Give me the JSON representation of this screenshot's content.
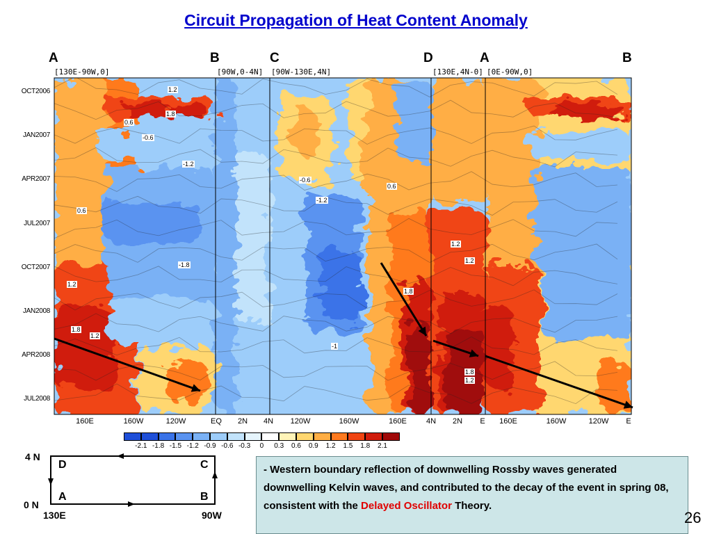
{
  "title": "Circuit Propagation of Heat Content Anomaly",
  "segment_letters": [
    "A",
    "B",
    "C",
    "D",
    "A",
    "B"
  ],
  "panel_headers": [
    "[130E-90W,0]",
    "[90W,0-4N]",
    "[90W-130E,4N]",
    "[130E,4N-0]",
    "[0E-90W,0]"
  ],
  "y_labels": [
    "OCT2006",
    "JAN2007",
    "APR2007",
    "JUL2007",
    "OCT2007",
    "JAN2008",
    "APR2008",
    "JUL2008"
  ],
  "x_labels": [
    "160E",
    "160W",
    "120W",
    "EQ",
    "2N",
    "4N",
    "120W",
    "160W",
    "160E",
    "4N",
    "2N",
    "E",
    "160E",
    "160W",
    "120W",
    "E"
  ],
  "colorbar": {
    "labels": [
      "-2.1",
      "-1.8",
      "-1.5",
      "-1.2",
      "-0.9",
      "-0.6",
      "-0.3",
      "0",
      "0.3",
      "0.6",
      "0.9",
      "1.2",
      "1.5",
      "1.8",
      "2.1"
    ],
    "colors": [
      "#1f4fd8",
      "#3a73e8",
      "#5a93f0",
      "#7ab1f5",
      "#9dcdfa",
      "#c2e3fb",
      "#e6f5fd",
      "#ffffff",
      "#fff4b8",
      "#ffd770",
      "#ffae44",
      "#ff7a1f",
      "#f04412",
      "#d01c0c",
      "#a00808"
    ]
  },
  "contour_labels": [
    "1.2",
    "0.6",
    "1.8",
    "-0.6",
    "-1.2",
    "-1.8",
    "0.6",
    "1.2",
    "-0.6",
    "-1.2",
    "1.2",
    "0.6",
    "1.8",
    "1.2",
    "1.8",
    "1.2",
    "1.8",
    "1.2",
    "-1"
  ],
  "diagram": {
    "lat_top": "4 N",
    "lat_bottom": "0 N",
    "lon_left": "130E",
    "lon_right": "90W",
    "corners": [
      "D",
      "C",
      "A",
      "B"
    ]
  },
  "text": {
    "dash": "- ",
    "part1": "Western boundary reflection of downwelling Rossby waves generated downwelling Kelvin waves, and contributed to the decay of the event in spring 08, consistent with the ",
    "highlight": "Delayed Oscillator",
    "part2": " Theory."
  },
  "page_number": "26",
  "colors": {
    "title": "#0000cc",
    "highlight": "#e00000",
    "textbox_bg": "#cde6e8"
  },
  "chart_data": {
    "type": "heatmap",
    "title": "",
    "xlabel": "",
    "ylabel": "",
    "panels": [
      "[130E-90W,0]",
      "[90W,0-4N]",
      "[90W-130E,4N]",
      "[130E,4N-0]",
      "[0E-90W,0]"
    ],
    "y_categories": [
      "OCT2006",
      "JAN2007",
      "APR2007",
      "JUL2007",
      "OCT2007",
      "JAN2008",
      "APR2008",
      "JUL2008"
    ],
    "levels": [
      -2.1,
      -1.8,
      -1.5,
      -1.2,
      -0.9,
      -0.6,
      -0.3,
      0,
      0.3,
      0.6,
      0.9,
      1.2,
      1.5,
      1.8,
      2.1
    ]
  }
}
